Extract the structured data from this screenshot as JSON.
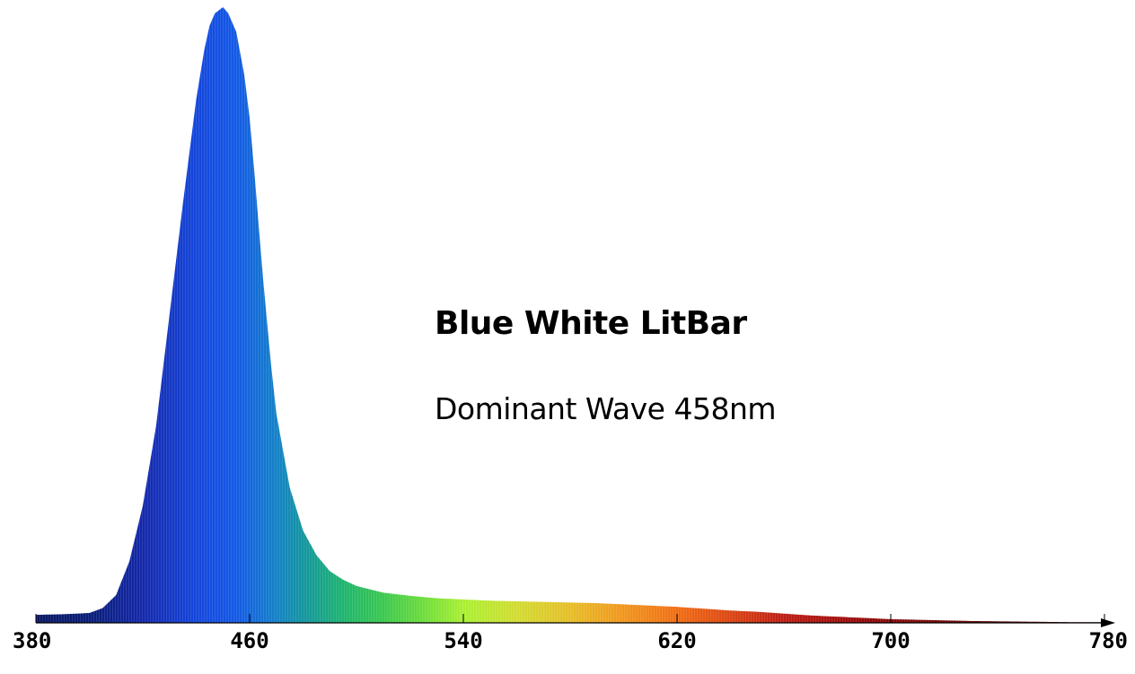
{
  "chart_data": {
    "type": "area",
    "title": "Blue White LitBar",
    "subtitle": "Dominant Wave 458nm",
    "xlabel": "",
    "ylabel": "",
    "xlim": [
      380,
      780
    ],
    "ylim": [
      0,
      100
    ],
    "x_ticks": [
      380,
      460,
      540,
      620,
      700,
      780
    ],
    "grid": false,
    "legend": "none",
    "series": [
      {
        "x": [
          380,
          390,
          400,
          405,
          410,
          415,
          420,
          425,
          430,
          435,
          440,
          443,
          445,
          447,
          450,
          452,
          455,
          458,
          460,
          462,
          465,
          468,
          470,
          475,
          480,
          485,
          490,
          495,
          500,
          510,
          520,
          530,
          540,
          550,
          560,
          570,
          580,
          590,
          600,
          610,
          620,
          630,
          640,
          650,
          660,
          670,
          680,
          690,
          700,
          710,
          720,
          730,
          740,
          750,
          760,
          770,
          780
        ],
        "y": [
          1.3,
          1.4,
          1.6,
          2.4,
          4.5,
          10,
          19,
          32,
          50,
          68,
          85,
          93,
          97,
          99,
          100,
          99,
          96,
          89,
          82,
          72,
          56,
          42,
          34,
          22,
          15,
          11,
          8.4,
          7.0,
          6.0,
          4.9,
          4.4,
          4.0,
          3.8,
          3.6,
          3.5,
          3.4,
          3.3,
          3.2,
          3.0,
          2.8,
          2.6,
          2.3,
          2.0,
          1.8,
          1.5,
          1.2,
          1.0,
          0.8,
          0.6,
          0.5,
          0.4,
          0.3,
          0.25,
          0.2,
          0.15,
          0.1,
          0.1
        ]
      }
    ]
  }
}
